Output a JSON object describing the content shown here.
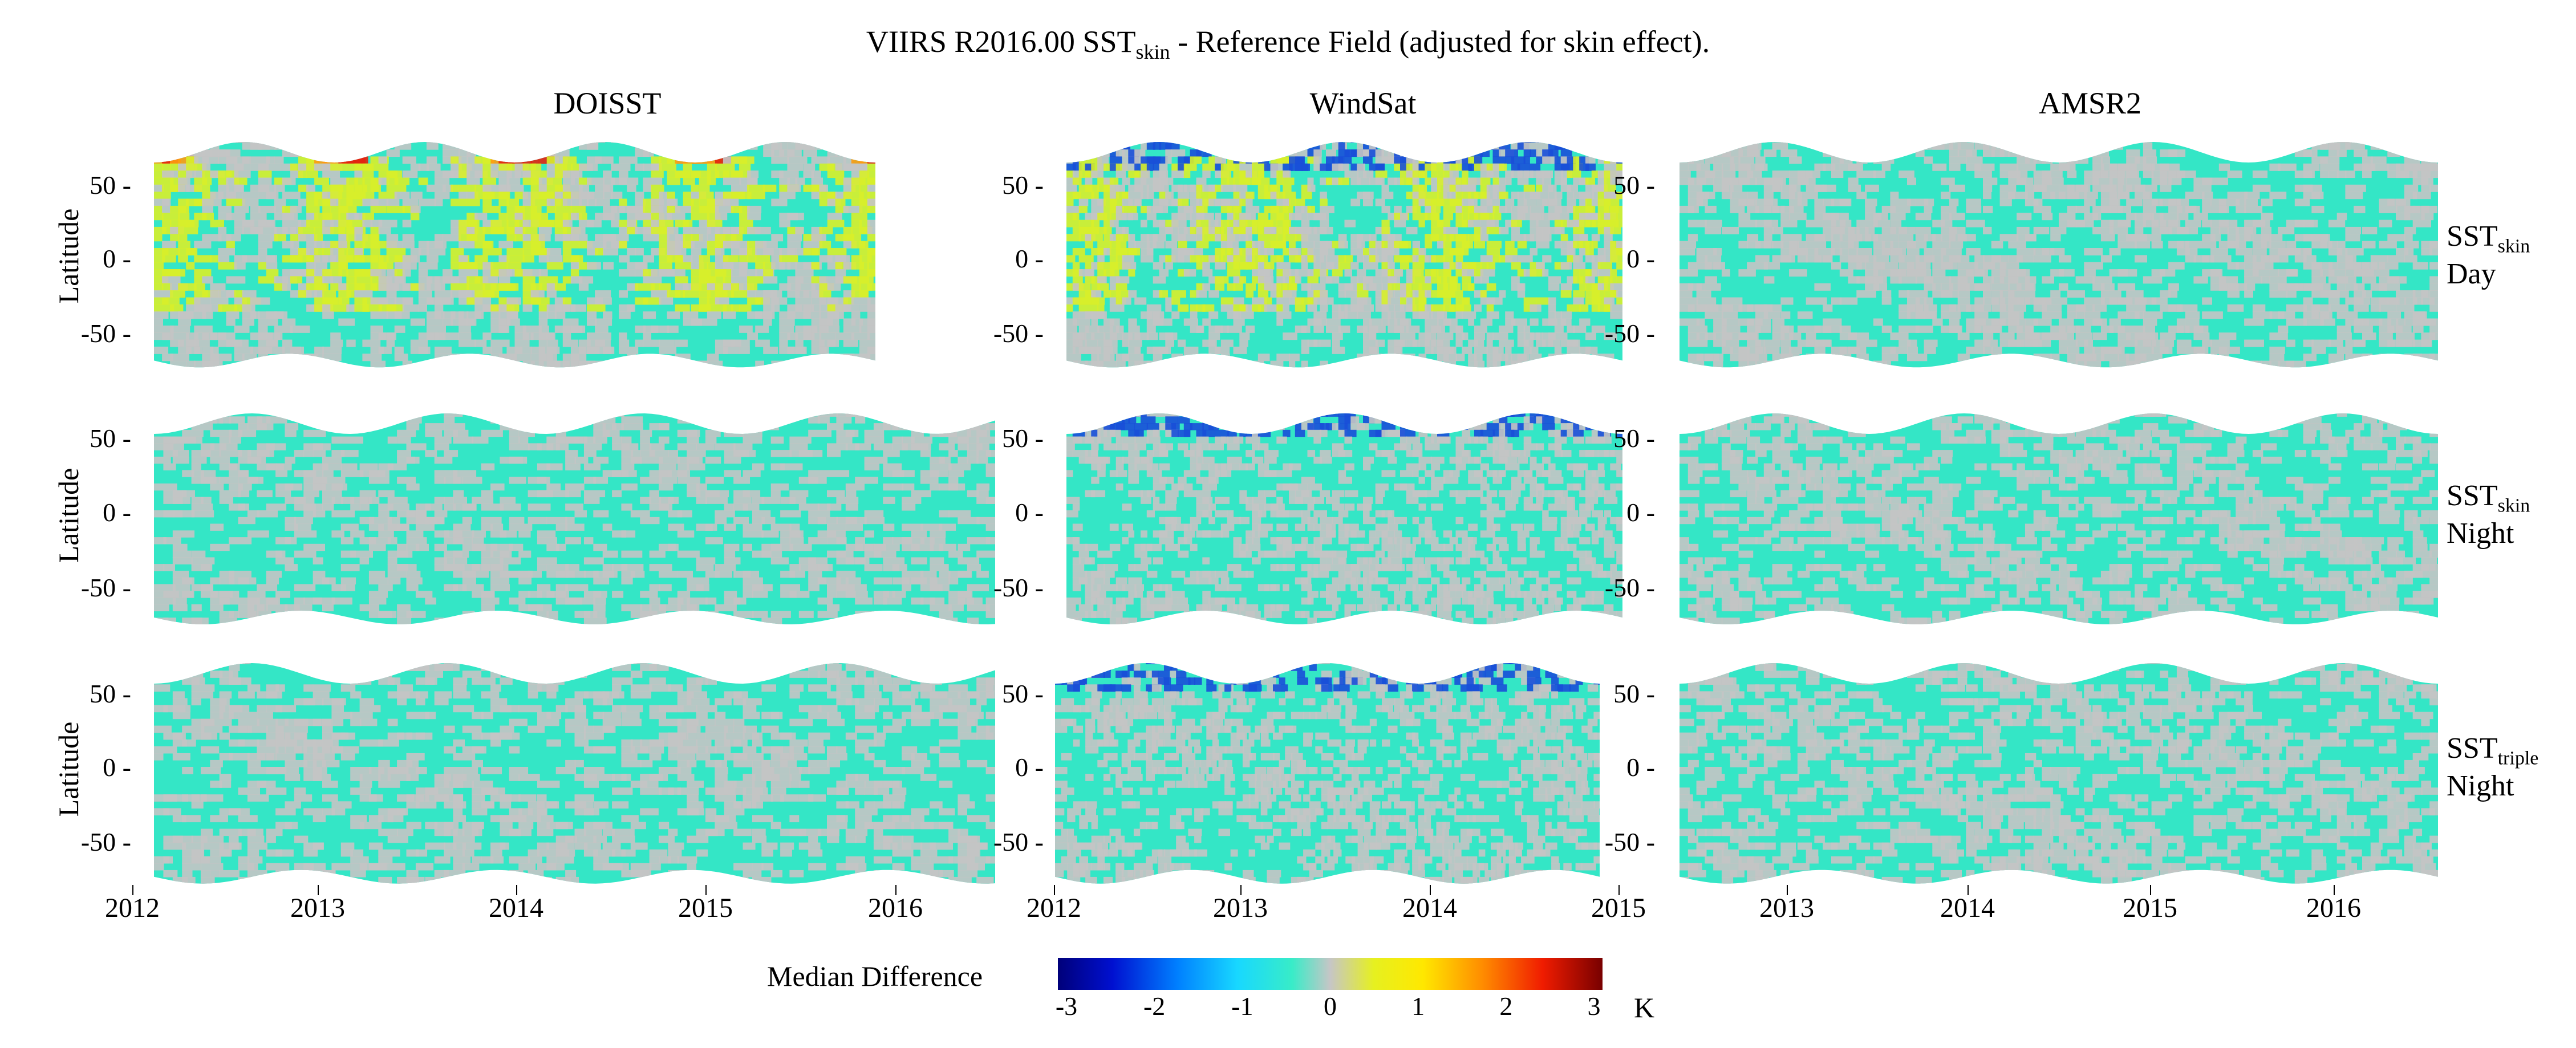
{
  "title": {
    "prefix": "VIIRS R2016.00 SST",
    "sub": "skin",
    "suffix": " - Reference Field  (adjusted for skin effect)."
  },
  "chart_data": {
    "type": "heatmap",
    "variable": "Median Difference",
    "units": "K",
    "columns": [
      {
        "name": "DOISST",
        "x_ticks": [
          "2012",
          "2013",
          "2014",
          "2015",
          "2016"
        ]
      },
      {
        "name": "WindSat",
        "x_ticks": [
          "2012",
          "2013",
          "2014",
          "2015"
        ]
      },
      {
        "name": "AMSR2",
        "x_ticks": [
          "2013",
          "2014",
          "2015",
          "2016"
        ]
      }
    ],
    "rows": [
      {
        "main": "SST",
        "sub": "skin",
        "line2": "Day"
      },
      {
        "main": "SST",
        "sub": "skin",
        "line2": "Night"
      },
      {
        "main": "SST",
        "sub": "triple",
        "line2": "Night"
      }
    ],
    "ylabel": "Latitude",
    "y_ticks": [
      "50",
      "0",
      "-50"
    ],
    "y_range": [
      -75,
      85
    ],
    "colorbar": {
      "range": [
        -3,
        3
      ],
      "ticks": [
        "-3",
        "-2",
        "-1",
        "0",
        "1",
        "2",
        "3"
      ]
    }
  },
  "colors": {
    "gray": "#c4c4c4",
    "cyan": "#34e6c6",
    "yellow": "#d8ee2a",
    "orange": "#ff9a10",
    "red": "#e32410",
    "blue": "#1a4fd8"
  }
}
